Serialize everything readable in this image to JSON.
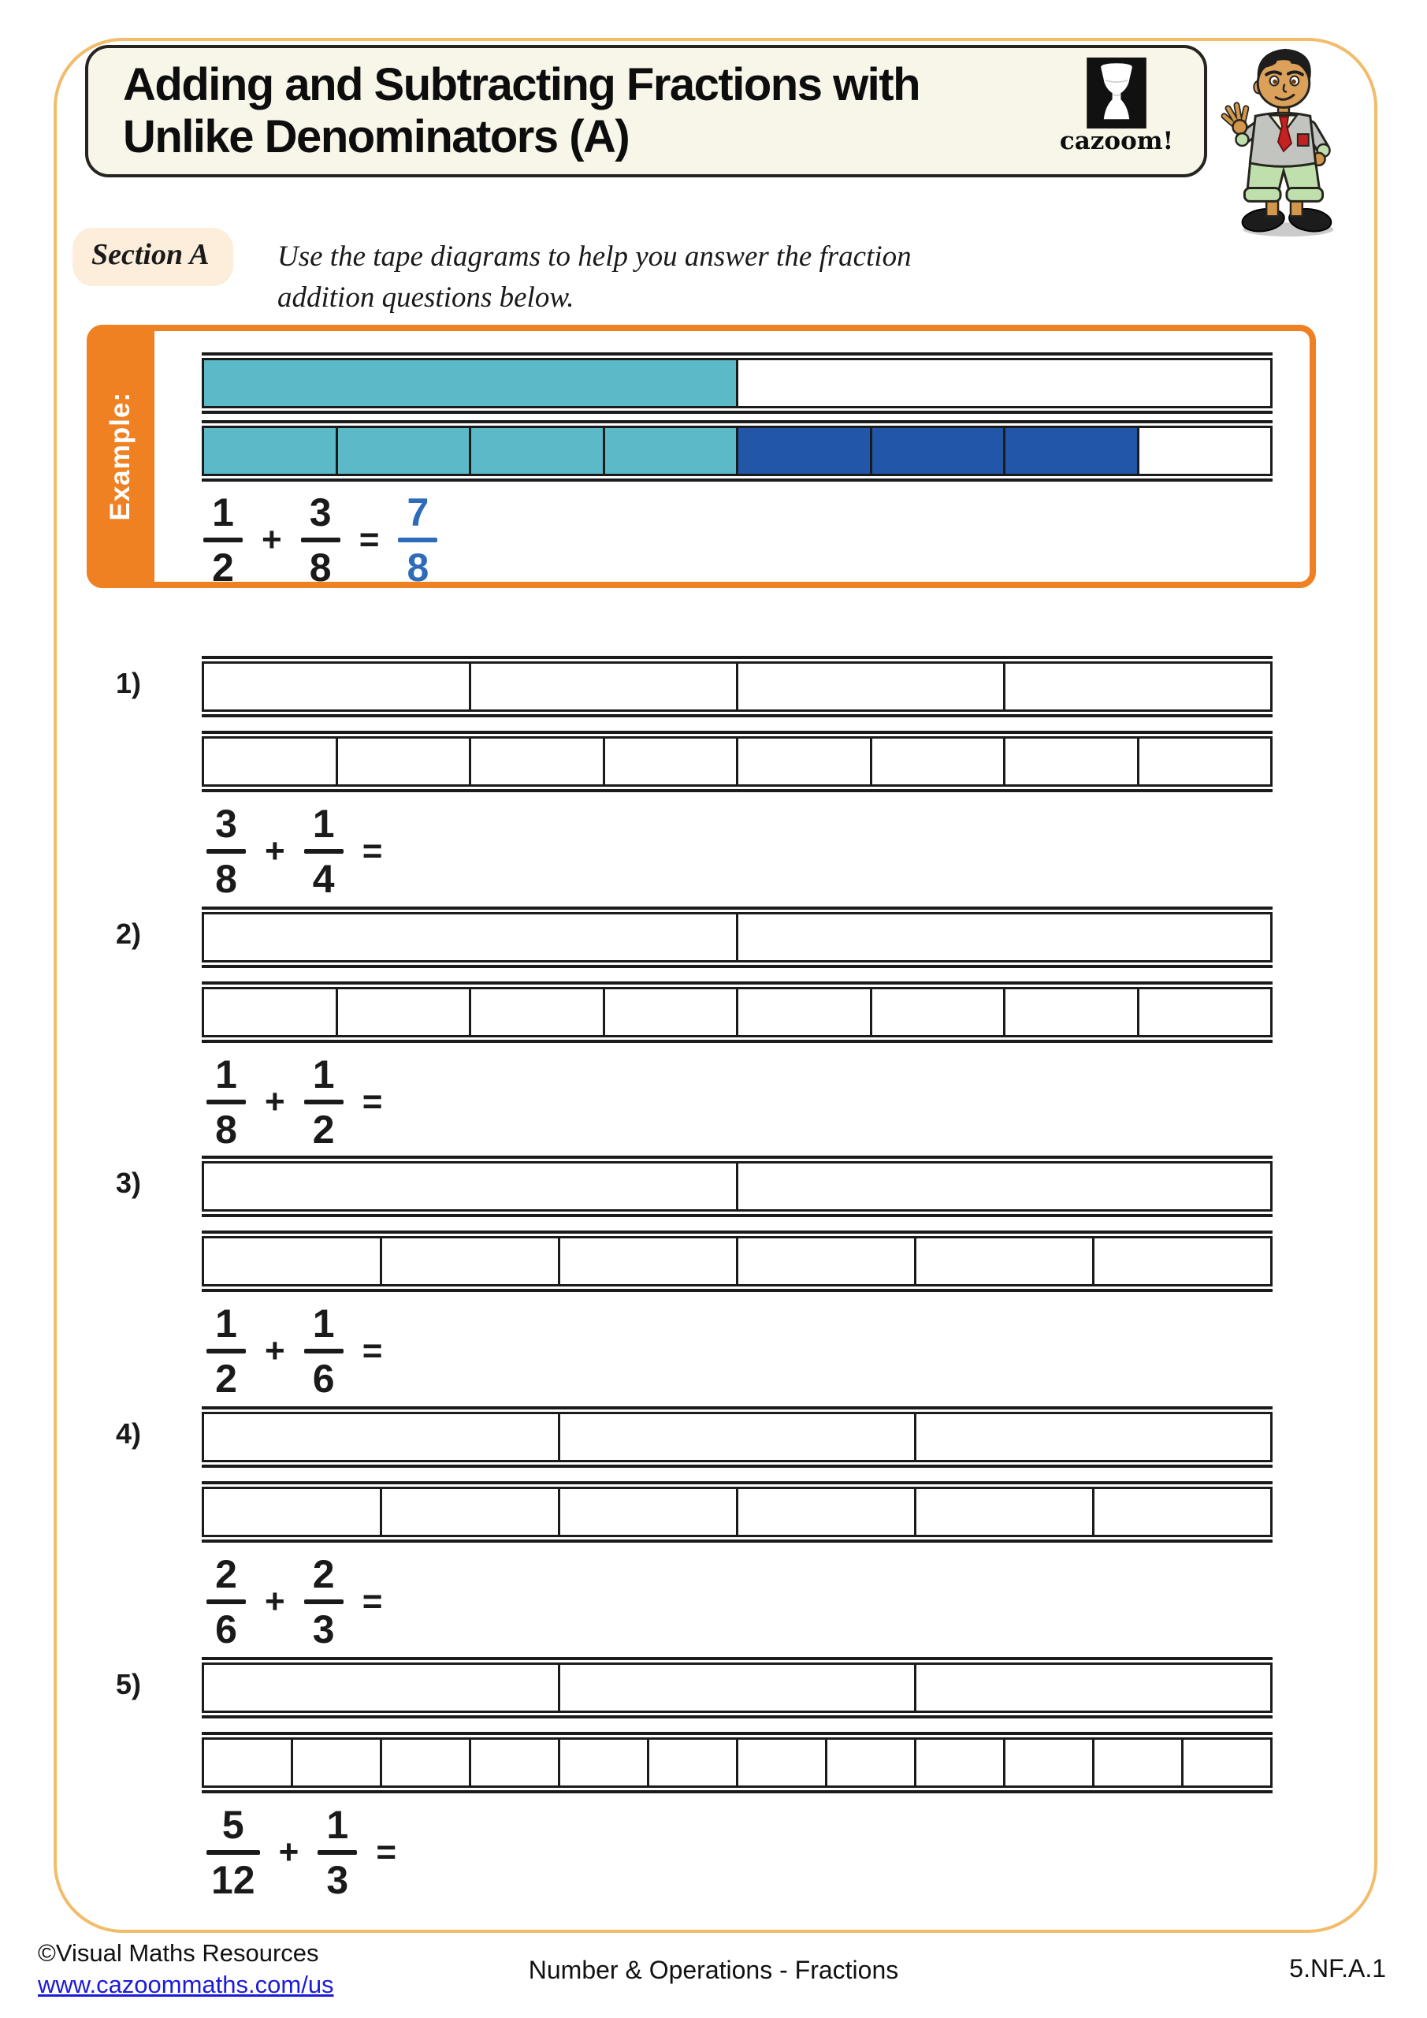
{
  "header": {
    "title_line1": "Adding and Subtracting Fractions with",
    "title_line2": "Unlike Denominators (A)",
    "logo_text": "cazoom!"
  },
  "section": {
    "label": "Section A",
    "instruction_line1": "Use the tape diagrams to help you answer the fraction",
    "instruction_line2": "addition questions below."
  },
  "symbols": {
    "plus": "+",
    "equals": "="
  },
  "example": {
    "label": "Example:",
    "tape_top": {
      "segments": 2,
      "fills": [
        "teal",
        "white"
      ]
    },
    "tape_bottom": {
      "segments": 8,
      "fills": [
        "teal",
        "teal",
        "teal",
        "teal",
        "blue",
        "blue",
        "blue",
        "white"
      ]
    },
    "equation": {
      "frac1": {
        "n": "1",
        "d": "2"
      },
      "frac2": {
        "n": "3",
        "d": "8"
      },
      "answer": {
        "n": "7",
        "d": "8"
      }
    }
  },
  "questions": [
    {
      "number": "1)",
      "tape_top": {
        "segments": 4
      },
      "tape_bottom": {
        "segments": 8
      },
      "frac1": {
        "n": "3",
        "d": "8"
      },
      "frac2": {
        "n": "1",
        "d": "4"
      }
    },
    {
      "number": "2)",
      "tape_top": {
        "segments": 2
      },
      "tape_bottom": {
        "segments": 8
      },
      "frac1": {
        "n": "1",
        "d": "8"
      },
      "frac2": {
        "n": "1",
        "d": "2"
      }
    },
    {
      "number": "3)",
      "tape_top": {
        "segments": 2
      },
      "tape_bottom": {
        "segments": 6
      },
      "frac1": {
        "n": "1",
        "d": "2"
      },
      "frac2": {
        "n": "1",
        "d": "6"
      }
    },
    {
      "number": "4)",
      "tape_top": {
        "segments": 3
      },
      "tape_bottom": {
        "segments": 6
      },
      "frac1": {
        "n": "2",
        "d": "6"
      },
      "frac2": {
        "n": "2",
        "d": "3"
      }
    },
    {
      "number": "5)",
      "tape_top": {
        "segments": 3
      },
      "tape_bottom": {
        "segments": 12
      },
      "frac1": {
        "n": "5",
        "d": "12"
      },
      "frac2": {
        "n": "1",
        "d": "3"
      }
    }
  ],
  "footer": {
    "copyright": "©Visual Maths Resources",
    "link": "www.cazoommaths.com/us",
    "center": "Number & Operations - Fractions",
    "standard": "5.NF.A.1"
  },
  "colors": {
    "teal": "#5bb9c8",
    "dark_blue": "#2156a8",
    "answer_blue": "#2e6cba",
    "orange": "#ef8122",
    "page_border": "#f2bc6b",
    "section_bg": "#fdeedc",
    "title_card_bg": "#f8f5e9",
    "link_blue": "#1b1bd8"
  }
}
